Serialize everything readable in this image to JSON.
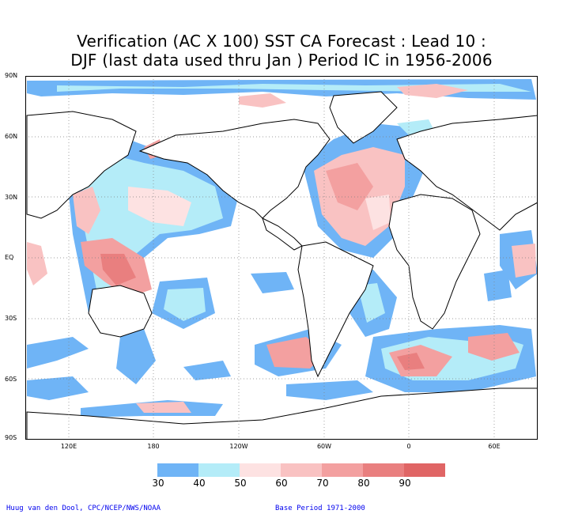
{
  "title_line1": "Verification (AC X 100) SST CA Forecast : Lead 10 :",
  "title_line2": "DJF (last data used thru Jan ) Period IC in 1956-2006",
  "lat_labels": [
    "90N",
    "60N",
    "30N",
    "EQ",
    "30S",
    "60S",
    "90S"
  ],
  "lon_labels": [
    "120E",
    "180",
    "120W",
    "60W",
    "0",
    "60E"
  ],
  "legend": {
    "labels": [
      "30",
      "40",
      "50",
      "60",
      "70",
      "80",
      "90"
    ],
    "colors": [
      "#6fb4f6",
      "#b4ecf8",
      "#fde2e2",
      "#f9c2c2",
      "#f3a0a0",
      "#e97f7f",
      "#e06565"
    ]
  },
  "credit_left": "Huug van den Dool, CPC/NCEP/NWS/NOAA",
  "credit_right": "Base Period 1971-2000"
}
